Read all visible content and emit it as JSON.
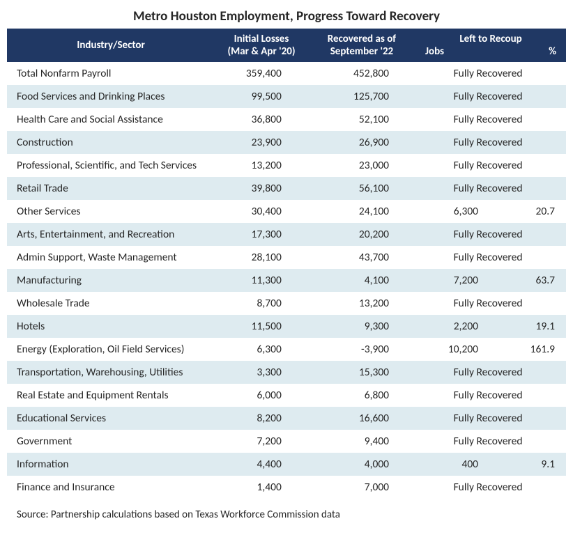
{
  "title": "Metro Houston Employment, Progress Toward Recovery",
  "header": {
    "industry": "Industry/Sector",
    "losses_l1": "Initial Losses",
    "losses_l2": "(Mar & Apr '20)",
    "recovered_l1": "Recovered as of",
    "recovered_l2": "September '22",
    "left_top": "Left to Recoup",
    "left_jobs": "Jobs",
    "left_pct": "%"
  },
  "fully_recovered_label": "Fully Recovered",
  "rows": [
    {
      "industry": "Total Nonfarm Payroll",
      "losses": "359,400",
      "recovered": "452,800",
      "jobs": "",
      "pct": "",
      "fully": true
    },
    {
      "industry": "Food Services and Drinking Places",
      "losses": "99,500",
      "recovered": "125,700",
      "jobs": "",
      "pct": "",
      "fully": true
    },
    {
      "industry": "Health Care and Social Assistance",
      "losses": "36,800",
      "recovered": "52,100",
      "jobs": "",
      "pct": "",
      "fully": true
    },
    {
      "industry": "Construction",
      "losses": "23,900",
      "recovered": "26,900",
      "jobs": "",
      "pct": "",
      "fully": true
    },
    {
      "industry": "Professional, Scientific, and Tech Services",
      "losses": "13,200",
      "recovered": "23,000",
      "jobs": "",
      "pct": "",
      "fully": true
    },
    {
      "industry": "Retail Trade",
      "losses": "39,800",
      "recovered": "56,100",
      "jobs": "",
      "pct": "",
      "fully": true
    },
    {
      "industry": "Other Services",
      "losses": "30,400",
      "recovered": "24,100",
      "jobs": "6,300",
      "pct": "20.7",
      "fully": false
    },
    {
      "industry": "Arts, Entertainment, and Recreation",
      "losses": "17,300",
      "recovered": "20,200",
      "jobs": "",
      "pct": "",
      "fully": true
    },
    {
      "industry": "Admin Support, Waste Management",
      "losses": "28,100",
      "recovered": "43,700",
      "jobs": "",
      "pct": "",
      "fully": true
    },
    {
      "industry": "Manufacturing",
      "losses": "11,300",
      "recovered": "4,100",
      "jobs": "7,200",
      "pct": "63.7",
      "fully": false
    },
    {
      "industry": "Wholesale Trade",
      "losses": "8,700",
      "recovered": "13,200",
      "jobs": "",
      "pct": "",
      "fully": true
    },
    {
      "industry": "Hotels",
      "losses": "11,500",
      "recovered": "9,300",
      "jobs": "2,200",
      "pct": "19.1",
      "fully": false
    },
    {
      "industry": "Energy (Exploration, Oil Field Services)",
      "losses": "6,300",
      "recovered": "-3,900",
      "jobs": "10,200",
      "pct": "161.9",
      "fully": false
    },
    {
      "industry": "Transportation, Warehousing, Utilities",
      "losses": "3,300",
      "recovered": "15,300",
      "jobs": "",
      "pct": "",
      "fully": true
    },
    {
      "industry": "Real Estate and Equipment Rentals",
      "losses": "6,000",
      "recovered": "6,800",
      "jobs": "",
      "pct": "",
      "fully": true
    },
    {
      "industry": "Educational Services",
      "losses": "8,200",
      "recovered": "16,600",
      "jobs": "",
      "pct": "",
      "fully": true
    },
    {
      "industry": "Government",
      "losses": "7,200",
      "recovered": "9,400",
      "jobs": "",
      "pct": "",
      "fully": true
    },
    {
      "industry": "Information",
      "losses": "4,400",
      "recovered": "4,000",
      "jobs": "400",
      "pct": "9.1",
      "fully": false
    },
    {
      "industry": "Finance and Insurance",
      "losses": "1,400",
      "recovered": "7,000",
      "jobs": "",
      "pct": "",
      "fully": true
    }
  ],
  "source": "Source: Partnership calculations based on Texas Workforce Commission data",
  "colors": {
    "header_bg": "#203864",
    "header_fg": "#ffffff",
    "row_alt_bg": "#deebf0",
    "text": "#262626",
    "bg": "#ffffff"
  },
  "typography": {
    "title_fontsize_pt": 14,
    "header_fontsize_pt": 11,
    "body_fontsize_pt": 11
  }
}
